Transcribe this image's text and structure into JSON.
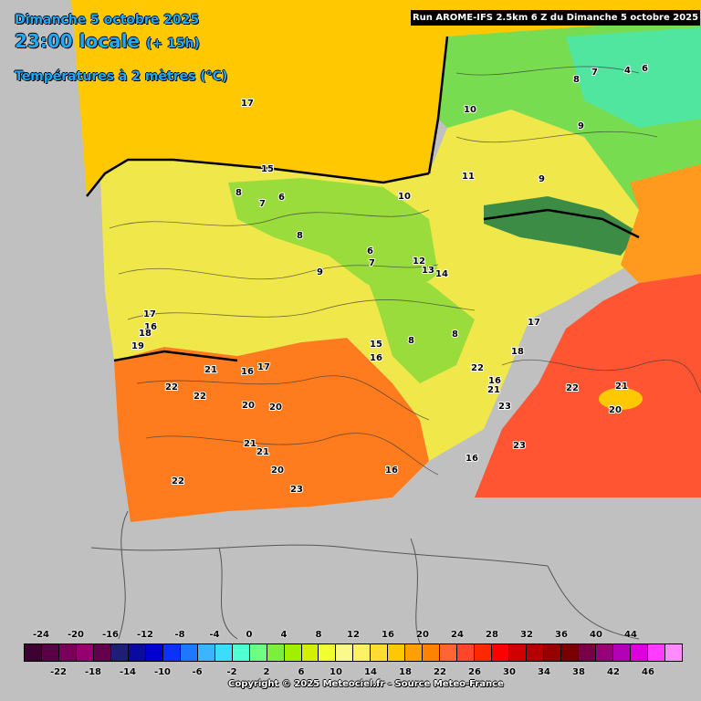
{
  "header": {
    "date": "Dimanche 5 octobre 2025",
    "time": "23:00 locale",
    "lead": "(+ 15h)",
    "parameter": "Températures à 2 mètres (°C)",
    "run": "Run AROME-IFS 2.5km 6 Z du Dimanche 5 octobre 2025"
  },
  "map_labels": [
    {
      "text": "17",
      "value": 17
    },
    {
      "text": "10",
      "value": 10
    },
    {
      "text": "8",
      "value": 8
    },
    {
      "text": "7",
      "value": 7
    },
    {
      "text": "4",
      "value": 4
    },
    {
      "text": "6",
      "value": 6
    },
    {
      "text": "9",
      "value": 9
    },
    {
      "text": "15",
      "value": 15
    },
    {
      "text": "11",
      "value": 11
    },
    {
      "text": "8",
      "value": 8
    },
    {
      "text": "7",
      "value": 7
    },
    {
      "text": "6",
      "value": 6
    },
    {
      "text": "10",
      "value": 10
    },
    {
      "text": "9",
      "value": 9
    },
    {
      "text": "8",
      "value": 8
    },
    {
      "text": "6",
      "value": 6
    },
    {
      "text": "12",
      "value": 12
    },
    {
      "text": "14",
      "value": 14
    },
    {
      "text": "13",
      "value": 13
    },
    {
      "text": "9",
      "value": 9
    },
    {
      "text": "7",
      "value": 7
    },
    {
      "text": "17",
      "value": 17
    },
    {
      "text": "16",
      "value": 16
    },
    {
      "text": "19",
      "value": 19
    },
    {
      "text": "18",
      "value": 18
    },
    {
      "text": "21",
      "value": 21
    },
    {
      "text": "16",
      "value": 16
    },
    {
      "text": "22",
      "value": 22
    },
    {
      "text": "22",
      "value": 22
    },
    {
      "text": "20",
      "value": 20
    },
    {
      "text": "20",
      "value": 20
    },
    {
      "text": "15",
      "value": 15
    },
    {
      "text": "16",
      "value": 16
    },
    {
      "text": "8",
      "value": 8
    },
    {
      "text": "8",
      "value": 8
    },
    {
      "text": "18",
      "value": 18
    },
    {
      "text": "21",
      "value": 21
    },
    {
      "text": "23",
      "value": 23
    },
    {
      "text": "22",
      "value": 22
    },
    {
      "text": "21",
      "value": 21
    },
    {
      "text": "20",
      "value": 20
    },
    {
      "text": "23",
      "value": 23
    },
    {
      "text": "21",
      "value": 21
    },
    {
      "text": "21",
      "value": 21
    },
    {
      "text": "20",
      "value": 20
    },
    {
      "text": "22",
      "value": 22
    },
    {
      "text": "23",
      "value": 23
    },
    {
      "text": "16",
      "value": 16
    },
    {
      "text": "16",
      "value": 16
    },
    {
      "text": "22",
      "value": 22
    },
    {
      "text": "17",
      "value": 17
    },
    {
      "text": "16",
      "value": 16
    },
    {
      "text": "17",
      "value": 17
    }
  ],
  "legend": {
    "top_ticks": [
      "-24",
      "-20",
      "-16",
      "-12",
      "-8",
      "-4",
      "0",
      "4",
      "8",
      "12",
      "16",
      "20",
      "24",
      "28",
      "32",
      "36",
      "40",
      "44"
    ],
    "bottom_ticks": [
      "-22",
      "-18",
      "-14",
      "-10",
      "-6",
      "-2",
      "2",
      "6",
      "10",
      "14",
      "18",
      "22",
      "26",
      "30",
      "34",
      "38",
      "42",
      "46"
    ],
    "colors": [
      "#3c0032",
      "#5a0046",
      "#78005a",
      "#96006e",
      "#64004b",
      "#1e1e78",
      "#0a0aa0",
      "#0000d2",
      "#0a32ff",
      "#1e78ff",
      "#3cb4ff",
      "#3cdcff",
      "#50ffd2",
      "#6eff82",
      "#78f03c",
      "#a0f000",
      "#d2f000",
      "#f0ff32",
      "#fafa8c",
      "#fff064",
      "#ffdc32",
      "#ffc800",
      "#ffa000",
      "#ff8200",
      "#ff6432",
      "#ff4628",
      "#ff2800",
      "#ff0000",
      "#d20000",
      "#b40000",
      "#960000",
      "#780000",
      "#780046",
      "#960078",
      "#b400b4",
      "#dc00dc",
      "#ff3cff",
      "#ff8cff"
    ]
  },
  "copyright": "Copyright © 2025 Meteociel.fr - Source Meteo-France",
  "colors": {
    "background": "#c0c0c0",
    "sea_warm": "#ff5533",
    "sea_north": "#ffc800",
    "header_text": "#1eaaff"
  }
}
